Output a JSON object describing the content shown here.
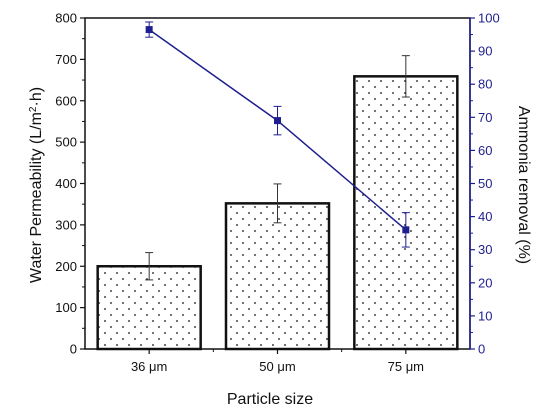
{
  "chart_data": {
    "type": "bar+line",
    "categories": [
      "36 μm",
      "50 μm",
      "75 μm"
    ],
    "xlabel": "Particle size",
    "ylabel_left_main": "Water Permeability (L/m",
    "ylabel_left_sup": "2",
    "ylabel_left_end": "·h)",
    "ylabel_right": "Ammonia removal (%)",
    "ylim_left": [
      0,
      800
    ],
    "yticks_left": [
      0,
      100,
      200,
      300,
      400,
      500,
      600,
      700,
      800
    ],
    "ylim_right": [
      0,
      100
    ],
    "yticks_right": [
      0,
      10,
      20,
      30,
      40,
      50,
      60,
      70,
      80,
      90,
      100
    ],
    "grid": false,
    "bars": {
      "name": "Water Permeability",
      "axis": "left",
      "values": [
        200,
        352,
        659
      ],
      "errors": [
        33,
        47,
        50
      ],
      "pattern": "dots"
    },
    "line": {
      "name": "Ammonia removal",
      "axis": "right",
      "values": [
        96.5,
        69,
        36
      ],
      "errors": [
        2.3,
        4.3,
        5.2
      ],
      "marker": "square"
    },
    "colors": {
      "bars": "#111111",
      "line": "#1f1f8f",
      "right_axis": "#1f1f8f"
    }
  }
}
